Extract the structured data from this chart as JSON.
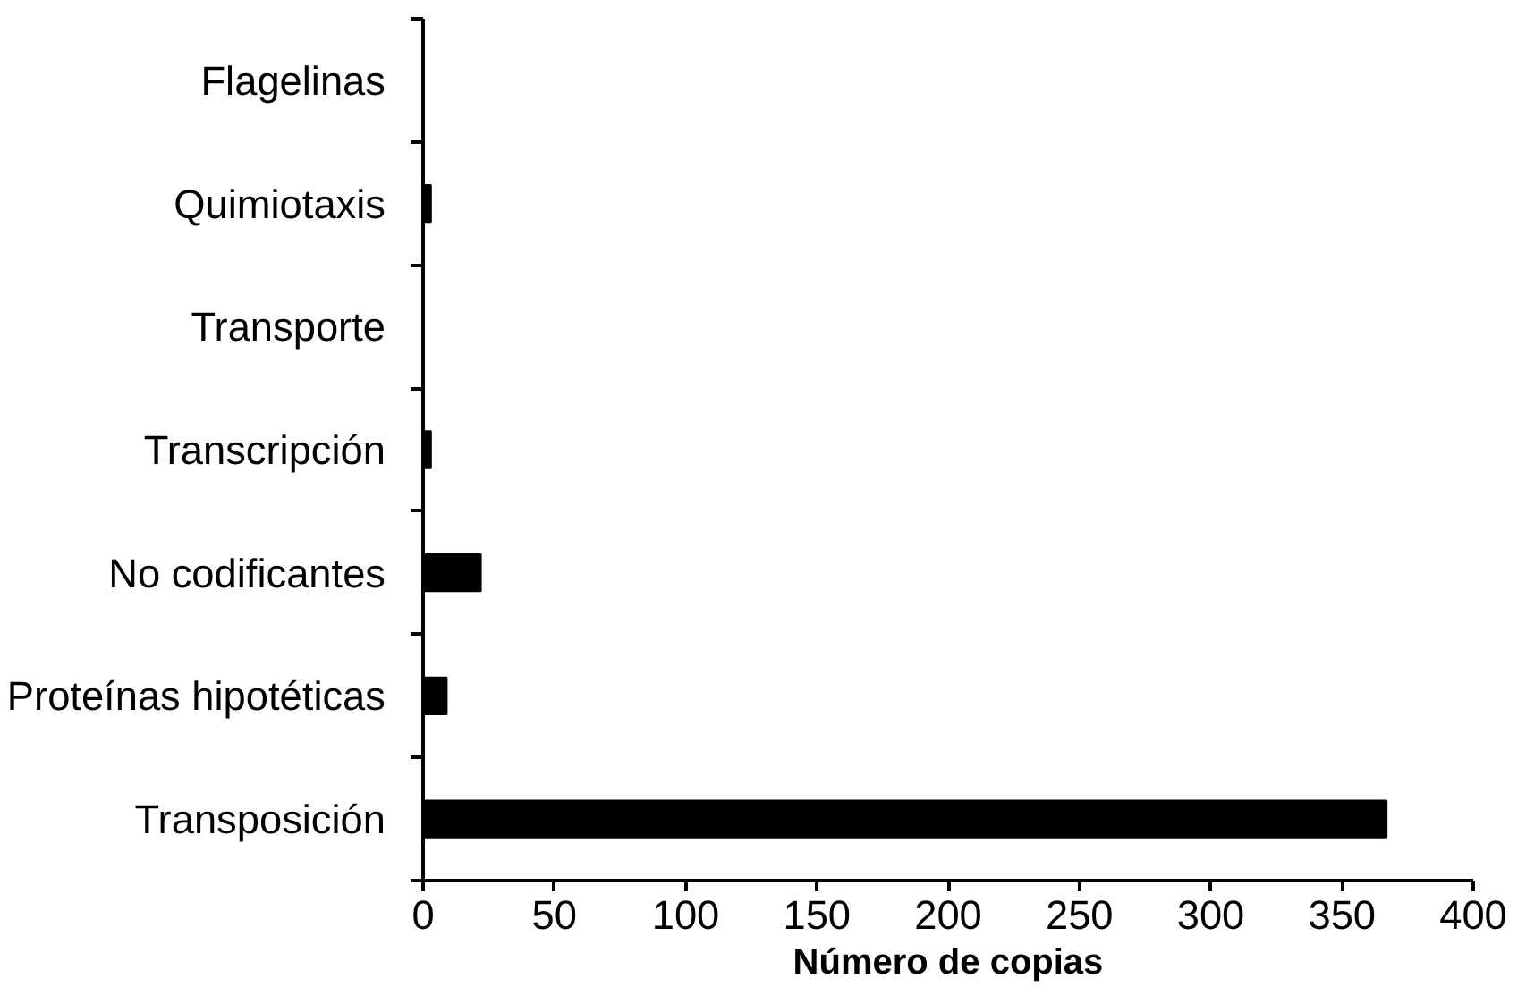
{
  "chart_data": {
    "type": "bar",
    "orientation": "horizontal",
    "xlabel": "Número de copias",
    "categories": [
      "Flagelinas",
      "Quimiotaxis",
      "Transporte",
      "Transcripción",
      "No codificantes",
      "Proteínas hipotéticas",
      "Transposición"
    ],
    "values": [
      0,
      3,
      0,
      3,
      22,
      9,
      367
    ],
    "color": "#000000",
    "xlim": [
      0,
      400
    ],
    "xticks": [
      0,
      50,
      100,
      150,
      200,
      250,
      300,
      350,
      400
    ],
    "grid": false
  }
}
